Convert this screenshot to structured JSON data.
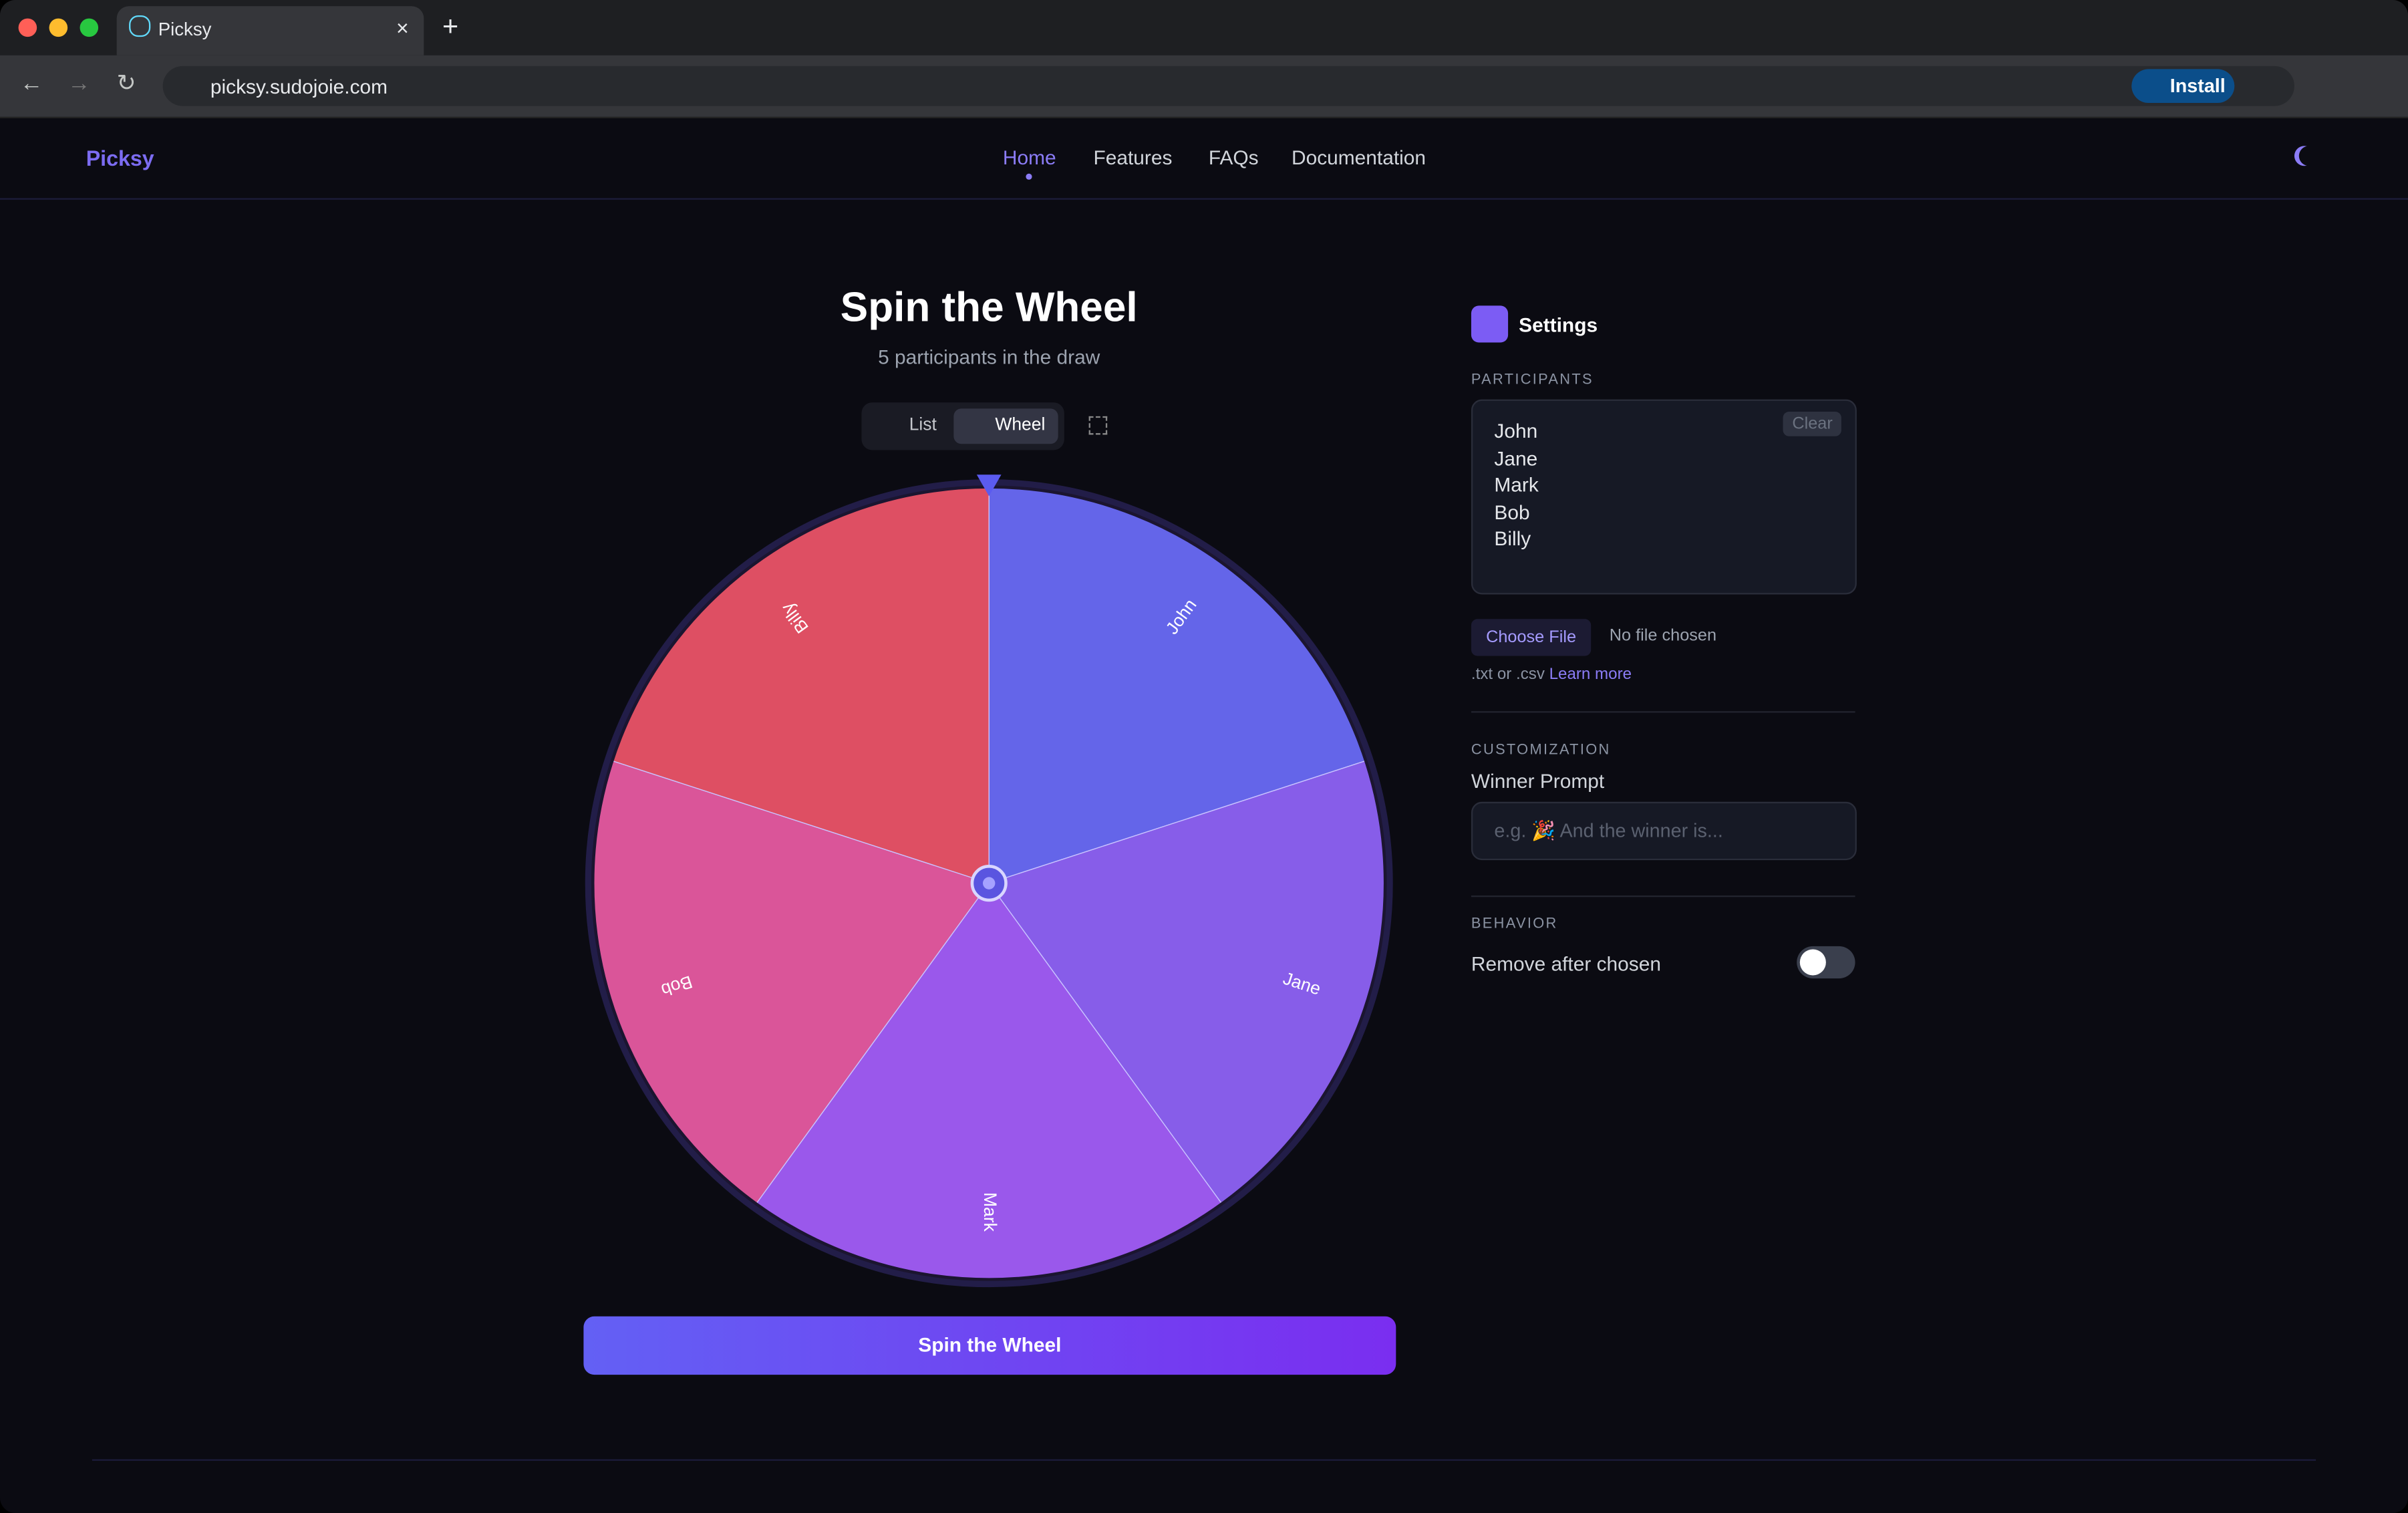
{
  "browser": {
    "tab_title": "Picksy",
    "url": "picksy.sudojoie.com",
    "install": "Install"
  },
  "header": {
    "brand": "Picksy",
    "nav": [
      "Home",
      "Features",
      "FAQs",
      "Documentation"
    ]
  },
  "main": {
    "title": "Spin the Wheel",
    "subtitle": "5 participants in the draw",
    "view_toggle": [
      "List",
      "Wheel"
    ],
    "wheel": {
      "segments": [
        {
          "label": "John",
          "color": "#6465e9"
        },
        {
          "label": "Jane",
          "color": "#875de9"
        },
        {
          "label": "Mark",
          "color": "#9a58eb"
        },
        {
          "label": "Bob",
          "color": "#da5599"
        },
        {
          "label": "Billy",
          "color": "#de4f63"
        }
      ]
    },
    "spin_button": "Spin the Wheel"
  },
  "settings": {
    "title": "Settings",
    "participants_heading": "PARTICIPANTS",
    "participants": [
      "John",
      "Jane",
      "Mark",
      "Bob",
      "Billy"
    ],
    "clear": "Clear",
    "choose_file": "Choose File",
    "no_file": "No file chosen",
    "file_hint": ".txt or .csv",
    "learn_more": "Learn more",
    "customization_heading": "CUSTOMIZATION",
    "winner_prompt_label": "Winner Prompt",
    "winner_prompt_placeholder": "e.g. 🎉 And the winner is...",
    "behavior_heading": "BEHAVIOR",
    "remove_after": "Remove after chosen"
  }
}
